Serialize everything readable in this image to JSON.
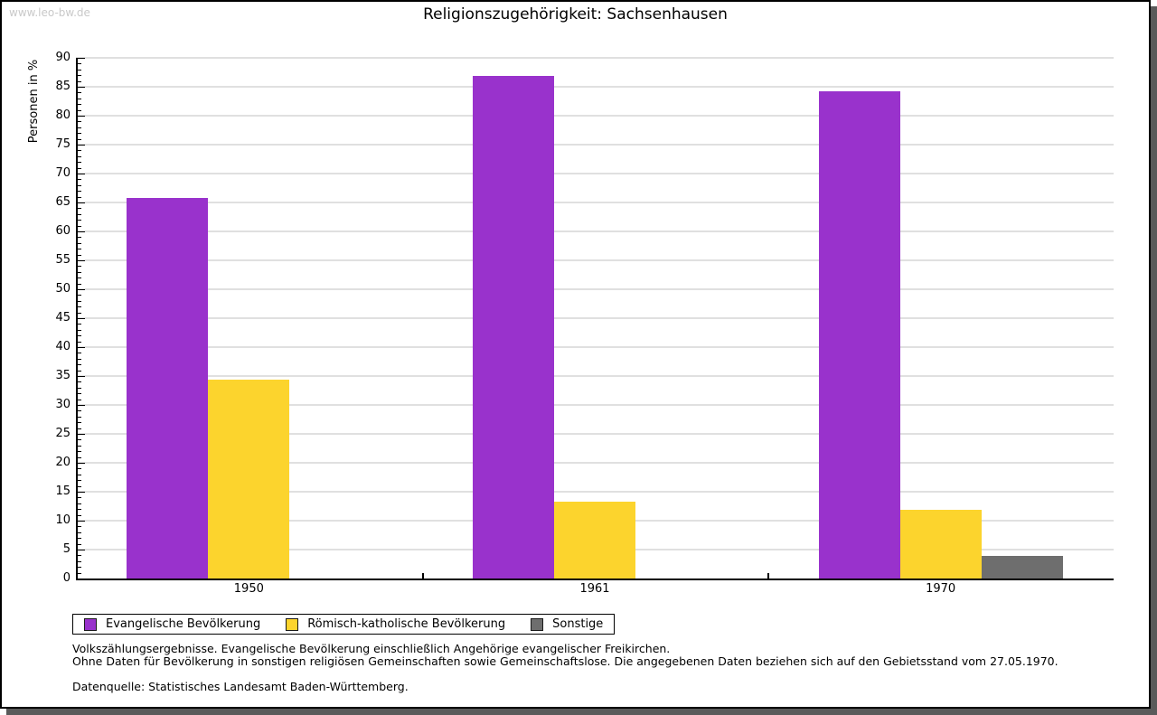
{
  "watermark": "www.leo-bw.de",
  "chart_data": {
    "type": "bar",
    "title": "Religionszugehörigkeit: Sachsenhausen",
    "xlabel": "",
    "ylabel": "Personen in %",
    "categories": [
      "1950",
      "1961",
      "1970"
    ],
    "series": [
      {
        "name": "Evangelische Bevölkerung",
        "color": "#9932cc",
        "values": [
          65.8,
          86.9,
          84.2
        ]
      },
      {
        "name": "Römisch-katholische Bevölkerung",
        "color": "#fcd42d",
        "values": [
          34.4,
          13.3,
          11.9
        ]
      },
      {
        "name": "Sonstige",
        "color": "#6e6e6e",
        "values": [
          0,
          0,
          3.9
        ]
      }
    ],
    "ylim": [
      0,
      90
    ],
    "ytick_step": 5,
    "minor_tick_step": 1,
    "grid": true,
    "legend_position": "bottom"
  },
  "footnotes": [
    "Volkszählungsergebnisse. Evangelische Bevölkerung einschließlich Angehörige evangelischer Freikirchen.",
    "Ohne Daten für Bevölkerung in sonstigen religiösen Gemeinschaften sowie Gemeinschaftslose. Die angegebenen Daten beziehen sich auf den Gebietsstand vom 27.05.1970."
  ],
  "source": "Datenquelle: Statistisches Landesamt Baden-Württemberg."
}
